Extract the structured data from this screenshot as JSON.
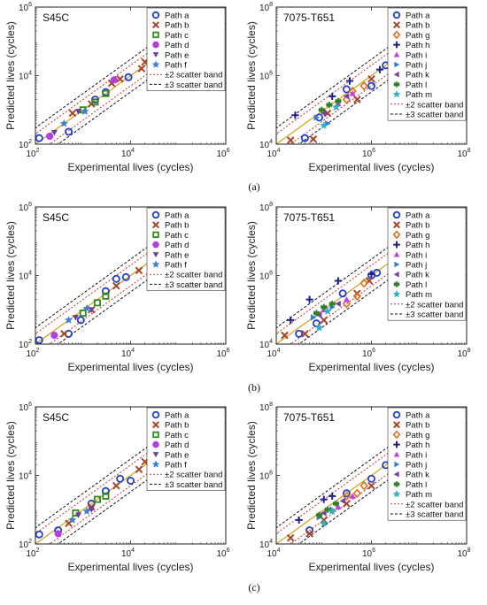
{
  "figure": {
    "captions": [
      "(a)",
      "(b)",
      "(c)"
    ]
  },
  "colors": {
    "axis": "#222222",
    "band2": "#c0392b",
    "band3": "#111111",
    "diagonal": "#d4a017",
    "Path a": "#1f3fd1",
    "Path b": "#a8442a",
    "Path c": "#2e8b1a",
    "Path d": "#b040e0",
    "Path e": "#6a3fa0",
    "Path f": "#3f7fd1",
    "Path g": "#e07020",
    "Path h": "#1f1f8f",
    "Path i": "#c040e0",
    "Path j": "#2f7fd1",
    "Path k": "#7a3fa0",
    "Path l": "#2f7f2a",
    "Path m": "#30b0c0"
  },
  "markers": {
    "Path a": "circle-open",
    "Path b": "cross-x",
    "Path c": "square-open",
    "Path d": "circle-filled",
    "Path e": "triangle-down",
    "Path f": "star",
    "Path g": "diamond-open",
    "Path h": "plus",
    "Path i": "triangle-up",
    "Path j": "triangle-right",
    "Path k": "triangle-left",
    "Path l": "asterisk",
    "Path m": "star"
  },
  "chart_data": [
    {
      "type": "scatter",
      "title": "S45C",
      "scale": "log-log",
      "xlabel": "Experimental lives (cycles)",
      "ylabel": "Predicted lives (cycles)",
      "xlim": [
        100,
        1000000
      ],
      "ylim": [
        100,
        1000000
      ],
      "ticks": [
        "10^2",
        "10^4",
        "10^6"
      ],
      "legend": [
        "Path a",
        "Path b",
        "Path c",
        "Path d",
        "Path e",
        "Path f",
        "±2 scatter band",
        "±3 scatter band"
      ],
      "legend_position": "top-right",
      "series": [
        {
          "name": "Path a",
          "points": [
            [
              120,
              150
            ],
            [
              500,
              230
            ],
            [
              1800,
              2000
            ],
            [
              3000,
              3300
            ],
            [
              9000,
              9000
            ]
          ]
        },
        {
          "name": "Path b",
          "points": [
            [
              600,
              800
            ],
            [
              1500,
              1500
            ],
            [
              4000,
              6000
            ],
            [
              6000,
              8000
            ],
            [
              17000,
              16000
            ],
            [
              20000,
              25000
            ]
          ]
        },
        {
          "name": "Path c",
          "points": [
            [
              1000,
              1000
            ],
            [
              1800,
              1700
            ],
            [
              3000,
              3000
            ]
          ]
        },
        {
          "name": "Path d",
          "points": [
            [
              200,
              170
            ],
            [
              4500,
              7500
            ]
          ]
        },
        {
          "name": "Path e",
          "points": [
            [
              250,
              220
            ],
            [
              800,
              900
            ]
          ]
        },
        {
          "name": "Path f",
          "points": [
            [
              400,
              400
            ],
            [
              1100,
              900
            ]
          ]
        }
      ]
    },
    {
      "type": "scatter",
      "title": "7075-T651",
      "scale": "log-log",
      "xlabel": "Experimental lives (cycles)",
      "ylabel": "Predicted lives (cycles)",
      "xlim": [
        10000,
        100000000
      ],
      "ylim": [
        10000,
        100000000
      ],
      "ticks": [
        "10^4",
        "10^6",
        "10^8"
      ],
      "legend": [
        "Path a",
        "Path b",
        "Path g",
        "Path h",
        "Path i",
        "Path j",
        "Path k",
        "Path l",
        "Path m",
        "±2 scatter band",
        "±3 scatter band"
      ],
      "legend_position": "top-right",
      "series": [
        {
          "name": "Path a",
          "points": [
            [
              40000,
              15000
            ],
            [
              80000,
              60000
            ],
            [
              300000,
              400000
            ],
            [
              1000000,
              500000
            ],
            [
              2000000,
              2000000
            ]
          ]
        },
        {
          "name": "Path b",
          "points": [
            [
              20000,
              13000
            ],
            [
              60000,
              14000
            ],
            [
              120000,
              80000
            ],
            [
              500000,
              200000
            ],
            [
              1000000,
              800000
            ]
          ]
        },
        {
          "name": "Path g",
          "points": [
            [
              300000,
              200000
            ],
            [
              400000,
              350000
            ],
            [
              700000,
              500000
            ]
          ]
        },
        {
          "name": "Path h",
          "points": [
            [
              25000,
              70000
            ],
            [
              150000,
              250000
            ],
            [
              350000,
              700000
            ],
            [
              1500000,
              1500000
            ]
          ]
        },
        {
          "name": "Path i",
          "points": [
            [
              200000,
              150000
            ],
            [
              400000,
              300000
            ]
          ]
        },
        {
          "name": "Path j",
          "points": [
            [
              70000,
              60000
            ],
            [
              120000,
              40000
            ]
          ]
        },
        {
          "name": "Path k",
          "points": [
            [
              100000,
              80000
            ],
            [
              300000,
              250000
            ]
          ]
        },
        {
          "name": "Path l",
          "points": [
            [
              90000,
              100000
            ],
            [
              130000,
              140000
            ],
            [
              200000,
              180000
            ]
          ]
        },
        {
          "name": "Path m",
          "points": [
            [
              100000,
              35000
            ],
            [
              180000,
              120000
            ]
          ]
        }
      ]
    },
    {
      "type": "scatter",
      "title": "S45C",
      "scale": "log-log",
      "xlabel": "Experimental lives (cycles)",
      "ylabel": "Predicted lives (cycles)",
      "xlim": [
        100,
        1000000
      ],
      "ylim": [
        100,
        1000000
      ],
      "ticks": [
        "10^2",
        "10^4",
        "10^6"
      ],
      "legend": [
        "Path a",
        "Path b",
        "Path c",
        "Path d",
        "Path e",
        "Path f",
        "±2 scatter band",
        "±3 scatter band"
      ],
      "legend_position": "top-right",
      "series": [
        {
          "name": "Path a",
          "points": [
            [
              120,
              130
            ],
            [
              500,
              200
            ],
            [
              900,
              500
            ],
            [
              3000,
              3500
            ],
            [
              5000,
              8000
            ],
            [
              8000,
              9000
            ]
          ]
        },
        {
          "name": "Path b",
          "points": [
            [
              400,
              200
            ],
            [
              1500,
              1000
            ],
            [
              5000,
              5000
            ],
            [
              15000,
              14000
            ]
          ]
        },
        {
          "name": "Path c",
          "points": [
            [
              1000,
              800
            ],
            [
              2000,
              1600
            ],
            [
              3000,
              2500
            ]
          ]
        },
        {
          "name": "Path d",
          "points": [
            [
              250,
              180
            ]
          ]
        },
        {
          "name": "Path e",
          "points": [
            [
              700,
              600
            ],
            [
              1500,
              1000
            ]
          ]
        },
        {
          "name": "Path f",
          "points": [
            [
              500,
              500
            ],
            [
              1200,
              1100
            ]
          ]
        }
      ]
    },
    {
      "type": "scatter",
      "title": "7075-T651",
      "scale": "log-log",
      "xlabel": "Experimental lives (cycles)",
      "ylabel": "Predicted lives (cycles)",
      "xlim": [
        10000,
        100000000
      ],
      "ylim": [
        10000,
        100000000
      ],
      "ticks": [
        "10^4",
        "10^6",
        "10^8"
      ],
      "legend": [
        "Path a",
        "Path b",
        "Path g",
        "Path h",
        "Path i",
        "Path j",
        "Path k",
        "Path l",
        "Path m",
        "±2 scatter band",
        "±3 scatter band"
      ],
      "legend_position": "top-right",
      "series": [
        {
          "name": "Path a",
          "points": [
            [
              30000,
              20000
            ],
            [
              70000,
              40000
            ],
            [
              250000,
              300000
            ],
            [
              1000000,
              1000000
            ],
            [
              1300000,
              1200000
            ]
          ]
        },
        {
          "name": "Path b",
          "points": [
            [
              15000,
              18000
            ],
            [
              40000,
              20000
            ],
            [
              100000,
              50000
            ],
            [
              500000,
              300000
            ],
            [
              900000,
              700000
            ]
          ]
        },
        {
          "name": "Path g",
          "points": [
            [
              300000,
              150000
            ],
            [
              500000,
              250000
            ],
            [
              700000,
              600000
            ]
          ]
        },
        {
          "name": "Path h",
          "points": [
            [
              20000,
              50000
            ],
            [
              50000,
              200000
            ],
            [
              200000,
              700000
            ],
            [
              1000000,
              1100000
            ]
          ]
        },
        {
          "name": "Path i",
          "points": [
            [
              100000,
              100000
            ],
            [
              300000,
              200000
            ]
          ]
        },
        {
          "name": "Path j",
          "points": [
            [
              60000,
              60000
            ],
            [
              150000,
              120000
            ]
          ]
        },
        {
          "name": "Path k",
          "points": [
            [
              80000,
              70000
            ],
            [
              200000,
              150000
            ]
          ]
        },
        {
          "name": "Path l",
          "points": [
            [
              70000,
              80000
            ],
            [
              100000,
              120000
            ],
            [
              150000,
              150000
            ]
          ]
        },
        {
          "name": "Path m",
          "points": [
            [
              80000,
              30000
            ],
            [
              120000,
              90000
            ]
          ]
        }
      ]
    },
    {
      "type": "scatter",
      "title": "S45C",
      "scale": "log-log",
      "xlabel": "Experimental lives (cycles)",
      "ylabel": "Predicted lives (cycles)",
      "xlim": [
        100,
        1000000
      ],
      "ylim": [
        100,
        1000000
      ],
      "ticks": [
        "10^2",
        "10^4",
        "10^6"
      ],
      "legend": [
        "Path a",
        "Path b",
        "Path c",
        "Path d",
        "Path e",
        "Path f",
        "±2 scatter band",
        "±3 scatter band"
      ],
      "legend_position": "top-right",
      "series": [
        {
          "name": "Path a",
          "points": [
            [
              120,
              190
            ],
            [
              300,
              250
            ],
            [
              1500,
              1500
            ],
            [
              3000,
              3500
            ],
            [
              6000,
              8000
            ],
            [
              10000,
              7000
            ]
          ]
        },
        {
          "name": "Path b",
          "points": [
            [
              500,
              400
            ],
            [
              1500,
              1200
            ],
            [
              5000,
              5000
            ],
            [
              15000,
              15000
            ],
            [
              20000,
              25000
            ]
          ]
        },
        {
          "name": "Path c",
          "points": [
            [
              700,
              800
            ],
            [
              2000,
              2000
            ],
            [
              3000,
              2500
            ]
          ]
        },
        {
          "name": "Path d",
          "points": [
            [
              300,
              200
            ]
          ]
        },
        {
          "name": "Path e",
          "points": [
            [
              800,
              700
            ],
            [
              1500,
              1000
            ]
          ]
        },
        {
          "name": "Path f",
          "points": [
            [
              600,
              500
            ],
            [
              1200,
              900
            ]
          ]
        }
      ]
    },
    {
      "type": "scatter",
      "title": "7075-T651",
      "scale": "log-log",
      "xlabel": "Experimental lives (cycles)",
      "ylabel": "Predicted lives (cycles)",
      "xlim": [
        10000,
        100000000
      ],
      "ylim": [
        10000,
        100000000
      ],
      "ticks": [
        "10^4",
        "10^6",
        "10^8"
      ],
      "legend": [
        "Path a",
        "Path b",
        "Path g",
        "Path h",
        "Path i",
        "Path j",
        "Path k",
        "Path l",
        "Path m",
        "±2 scatter band",
        "±3 scatter band"
      ],
      "legend_position": "top-right",
      "series": [
        {
          "name": "Path a",
          "points": [
            [
              50000,
              25000
            ],
            [
              300000,
              300000
            ],
            [
              1000000,
              800000
            ],
            [
              2000000,
              2000000
            ]
          ]
        },
        {
          "name": "Path b",
          "points": [
            [
              20000,
              15000
            ],
            [
              50000,
              20000
            ],
            [
              100000,
              50000
            ],
            [
              300000,
              150000
            ],
            [
              1000000,
              500000
            ]
          ]
        },
        {
          "name": "Path g",
          "points": [
            [
              300000,
              250000
            ],
            [
              500000,
              300000
            ],
            [
              700000,
              500000
            ]
          ]
        },
        {
          "name": "Path h",
          "points": [
            [
              30000,
              50000
            ],
            [
              100000,
              200000
            ],
            [
              150000,
              250000
            ]
          ]
        },
        {
          "name": "Path i",
          "points": [
            [
              200000,
              120000
            ],
            [
              400000,
              250000
            ]
          ]
        },
        {
          "name": "Path j",
          "points": [
            [
              80000,
              60000
            ],
            [
              150000,
              100000
            ]
          ]
        },
        {
          "name": "Path k",
          "points": [
            [
              100000,
              80000
            ],
            [
              250000,
              180000
            ]
          ]
        },
        {
          "name": "Path l",
          "points": [
            [
              80000,
              70000
            ],
            [
              120000,
              100000
            ],
            [
              180000,
              150000
            ]
          ]
        },
        {
          "name": "Path m",
          "points": [
            [
              100000,
              40000
            ],
            [
              150000,
              90000
            ]
          ]
        }
      ]
    }
  ]
}
